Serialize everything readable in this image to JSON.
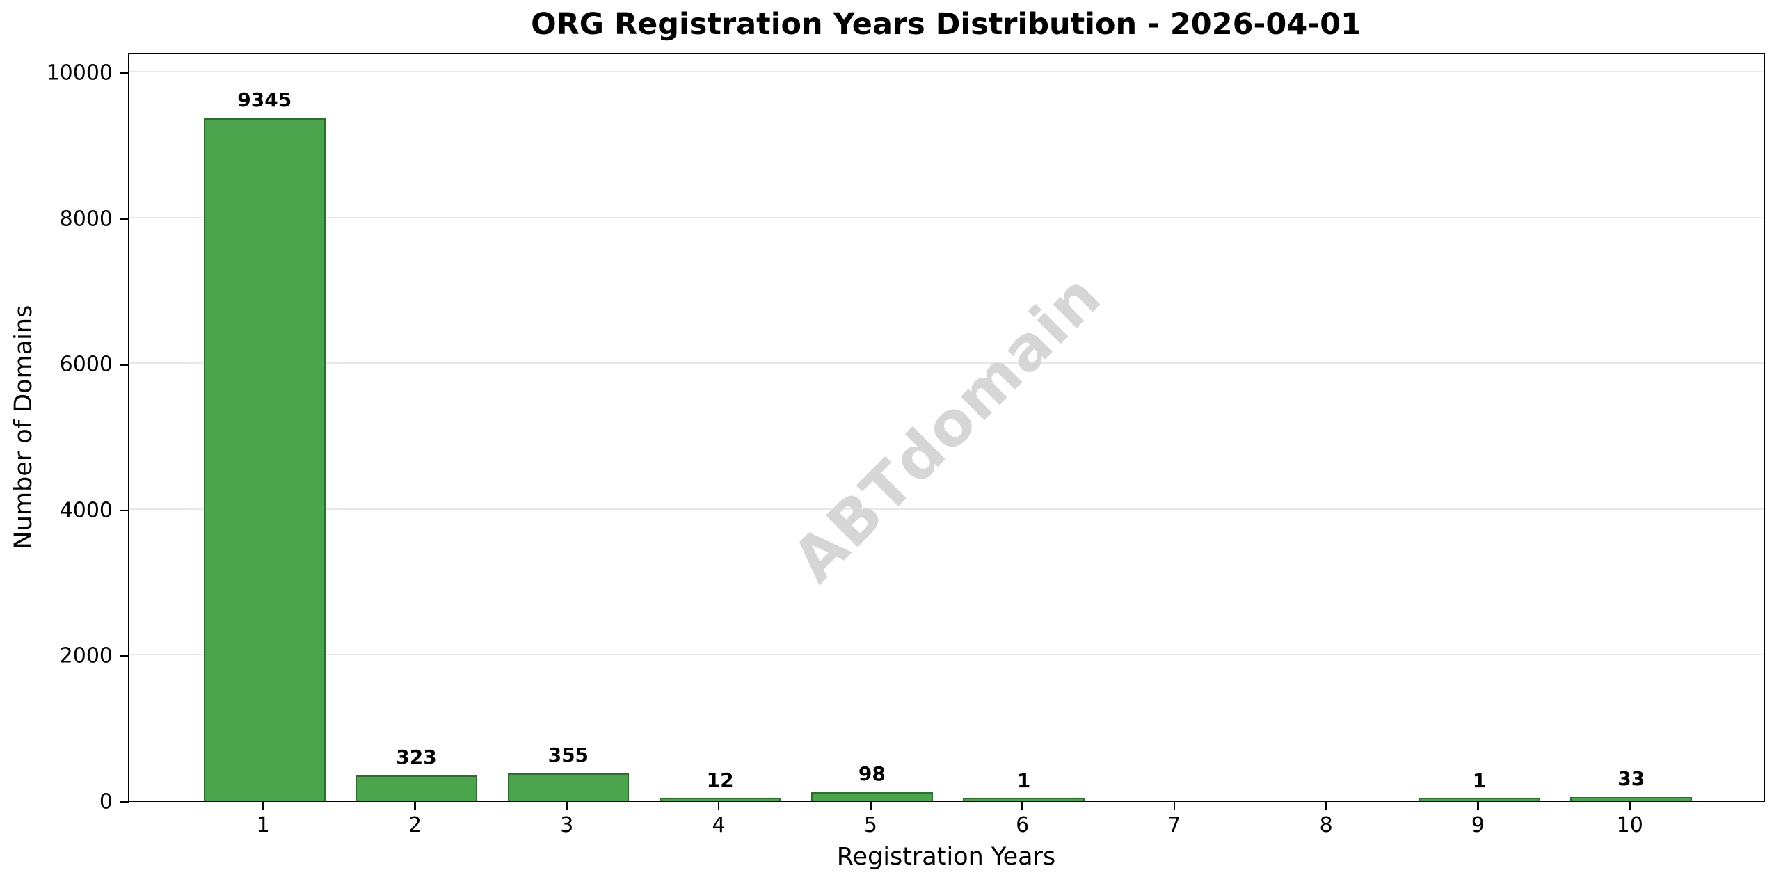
{
  "chart_data": {
    "type": "bar",
    "title": "ORG Registration Years Distribution - 2026-04-01",
    "xlabel": "Registration Years",
    "ylabel": "Number of Domains",
    "categories": [
      "1",
      "2",
      "3",
      "4",
      "5",
      "6",
      "7",
      "8",
      "9",
      "10"
    ],
    "values": [
      9345,
      323,
      355,
      12,
      98,
      1,
      0,
      0,
      1,
      33
    ],
    "bar_value_labels": [
      "9345",
      "323",
      "355",
      "12",
      "98",
      "1",
      "",
      "",
      "1",
      "33"
    ],
    "yticks": [
      0,
      2000,
      4000,
      6000,
      8000,
      10000
    ],
    "ytick_labels": [
      "0",
      "2000",
      "4000",
      "6000",
      "8000",
      "10000"
    ],
    "ylim": [
      0,
      10280
    ],
    "xlim": [
      0.11,
      10.89
    ],
    "bar_width_units": 0.8,
    "grid": "horizontal",
    "legend": "none",
    "watermark": "ABTdomain",
    "colors": {
      "bar_fill": "#4aa54d",
      "bar_edge": "#2d6e2d",
      "grid": "#e8e8e8",
      "axis": "#000000",
      "text": "#000000",
      "watermark": "#d6d6d6",
      "background": "#ffffff"
    }
  }
}
